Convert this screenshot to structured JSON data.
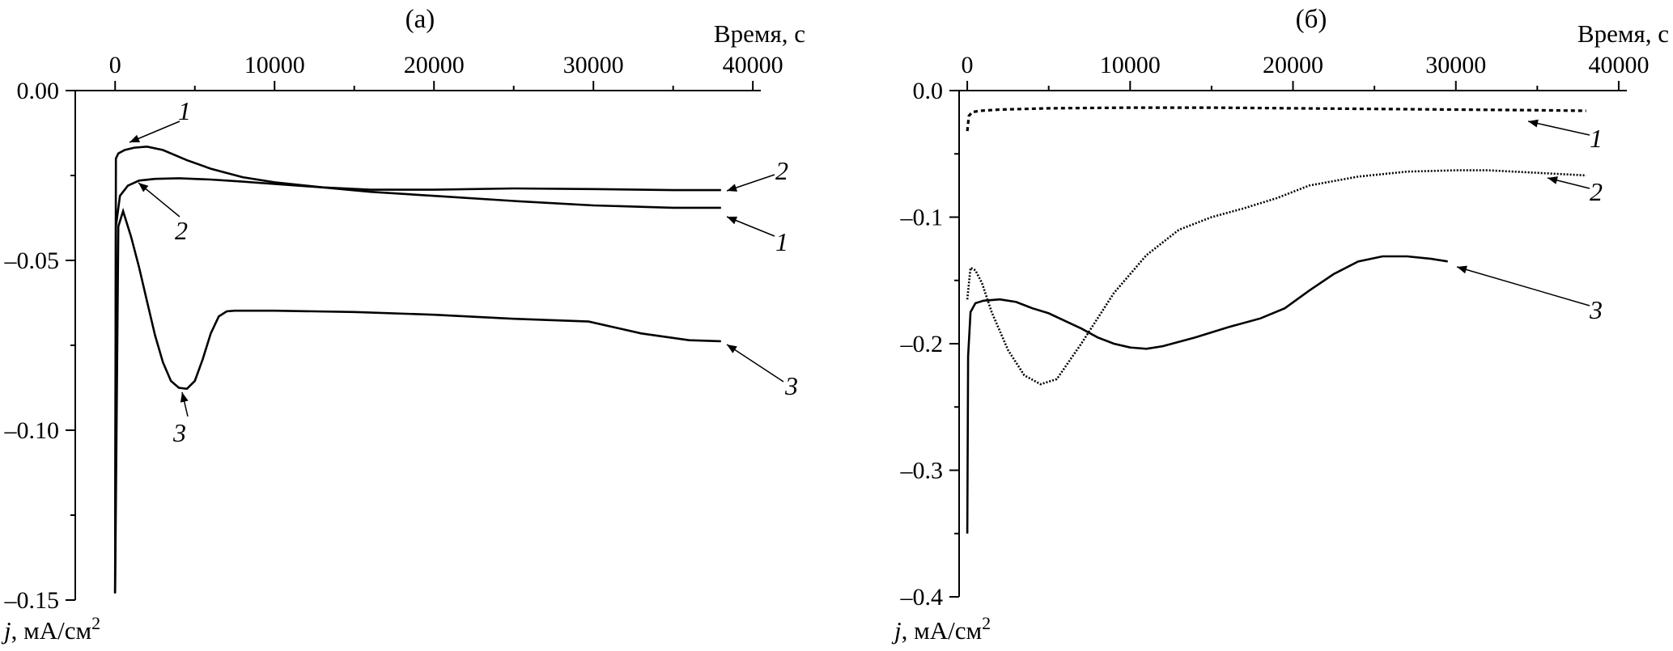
{
  "chart_data": [
    {
      "type": "line",
      "panel_label": "(a)",
      "xlabel": "Время, с",
      "ylabel": "j, мА/см2",
      "ylabel_parts": {
        "symbol": "j",
        "unit": ", мА/см",
        "sup": "2"
      },
      "xlim": [
        -2500,
        40500
      ],
      "ylim": [
        -0.15,
        0.0
      ],
      "x_ticks": [
        0,
        10000,
        20000,
        30000,
        40000
      ],
      "x_tick_labels": [
        "0",
        "10000",
        "20000",
        "30000",
        "40000"
      ],
      "y_ticks": [
        0.0,
        -0.05,
        -0.1,
        -0.15
      ],
      "y_tick_labels": [
        "0.00",
        "–0.05",
        "–0.10",
        "–0.15"
      ],
      "x_axis_position": "top",
      "grid": false,
      "legend": "none",
      "series": [
        {
          "label": "1",
          "style": "solid",
          "x": [
            0,
            50,
            200,
            600,
            1200,
            2000,
            3000,
            4500,
            6000,
            8000,
            10000,
            13000,
            16000,
            20000,
            25000,
            30000,
            35000,
            38000
          ],
          "y": [
            -0.148,
            -0.02,
            -0.0185,
            -0.0175,
            -0.0168,
            -0.0165,
            -0.0175,
            -0.0205,
            -0.023,
            -0.0255,
            -0.027,
            -0.0285,
            -0.0298,
            -0.031,
            -0.0325,
            -0.0338,
            -0.0345,
            -0.0345
          ]
        },
        {
          "label": "2",
          "style": "solid",
          "x": [
            0,
            50,
            300,
            800,
            1500,
            2500,
            4000,
            6000,
            8000,
            10000,
            13000,
            16000,
            20000,
            25000,
            30000,
            35000,
            38000
          ],
          "y": [
            -0.148,
            -0.04,
            -0.031,
            -0.028,
            -0.0265,
            -0.026,
            -0.0258,
            -0.0262,
            -0.0268,
            -0.0275,
            -0.0285,
            -0.0292,
            -0.0292,
            -0.0288,
            -0.029,
            -0.0293,
            -0.0293
          ]
        },
        {
          "label": "3",
          "style": "dotted-solid",
          "x": [
            0,
            200,
            500,
            1000,
            1500,
            2000,
            2500,
            3000,
            3500,
            4000,
            4500,
            5000,
            5500,
            6000,
            6500,
            7000,
            7500,
            10000,
            15000,
            20000,
            25000,
            29700,
            33000,
            36000,
            38000
          ],
          "y": [
            -0.148,
            -0.04,
            -0.0355,
            -0.043,
            -0.052,
            -0.062,
            -0.072,
            -0.08,
            -0.0855,
            -0.0875,
            -0.0878,
            -0.0855,
            -0.079,
            -0.0715,
            -0.0665,
            -0.065,
            -0.0648,
            -0.0648,
            -0.0652,
            -0.066,
            -0.0672,
            -0.068,
            -0.0715,
            -0.0735,
            -0.0738
          ]
        }
      ]
    },
    {
      "type": "line",
      "panel_label": "(б)",
      "xlabel": "Время, с",
      "ylabel": "j, мА/см2",
      "ylabel_parts": {
        "symbol": "j",
        "unit": ", мА/см",
        "sup": "2"
      },
      "xlim": [
        -500,
        40500
      ],
      "ylim": [
        -0.4,
        0.0
      ],
      "x_ticks": [
        0,
        10000,
        20000,
        30000,
        40000
      ],
      "x_tick_labels": [
        "0",
        "10000",
        "20000",
        "30000",
        "40000"
      ],
      "y_ticks": [
        0.0,
        -0.1,
        -0.2,
        -0.3,
        -0.4
      ],
      "y_tick_labels": [
        "0.0",
        "–0.1",
        "–0.2",
        "–0.3",
        "–0.4"
      ],
      "x_axis_position": "top",
      "grid": false,
      "legend": "none",
      "series": [
        {
          "label": "1",
          "style": "dashed",
          "x": [
            0,
            100,
            300,
            800,
            2000,
            5000,
            10000,
            15000,
            20000,
            25000,
            30000,
            35000,
            38000
          ],
          "y": [
            -0.032,
            -0.02,
            -0.017,
            -0.016,
            -0.015,
            -0.014,
            -0.0135,
            -0.0135,
            -0.014,
            -0.0145,
            -0.015,
            -0.0155,
            -0.016
          ]
        },
        {
          "label": "2",
          "style": "dotted",
          "x": [
            0,
            200,
            500,
            900,
            1500,
            2500,
            3500,
            4500,
            5500,
            7000,
            9000,
            11000,
            13000,
            15000,
            17000,
            19000,
            21000,
            24000,
            27000,
            30000,
            32000,
            35000,
            38000
          ],
          "y": [
            -0.165,
            -0.14,
            -0.142,
            -0.152,
            -0.175,
            -0.205,
            -0.225,
            -0.232,
            -0.228,
            -0.2,
            -0.16,
            -0.13,
            -0.11,
            -0.1,
            -0.093,
            -0.085,
            -0.075,
            -0.068,
            -0.064,
            -0.063,
            -0.063,
            -0.065,
            -0.067
          ]
        },
        {
          "label": "3",
          "style": "solid",
          "x": [
            0,
            50,
            200,
            500,
            1000,
            2000,
            3000,
            4000,
            5000,
            6000,
            7000,
            8000,
            9000,
            10000,
            11000,
            12000,
            14000,
            16000,
            18000,
            19500,
            21000,
            22500,
            24000,
            25500,
            27000,
            28500,
            29500
          ],
          "y": [
            -0.35,
            -0.21,
            -0.175,
            -0.168,
            -0.166,
            -0.165,
            -0.167,
            -0.172,
            -0.176,
            -0.182,
            -0.188,
            -0.195,
            -0.2,
            -0.203,
            -0.204,
            -0.202,
            -0.195,
            -0.187,
            -0.18,
            -0.172,
            -0.158,
            -0.145,
            -0.135,
            -0.131,
            -0.131,
            -0.133,
            -0.135
          ]
        }
      ]
    }
  ]
}
